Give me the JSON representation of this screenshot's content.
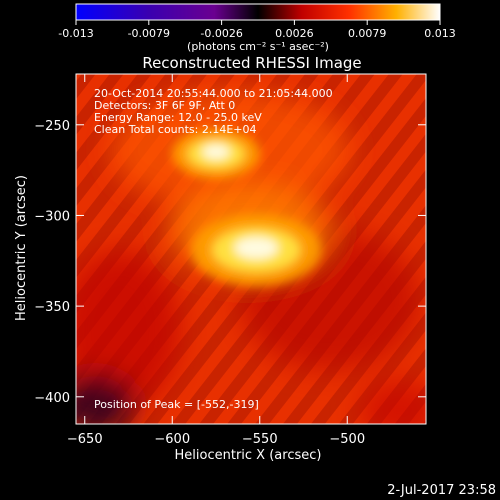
{
  "chart_data": {
    "type": "heatmap",
    "title": "Reconstructed RHESSI Image",
    "xlabel": "Heliocentric X (arcsec)",
    "ylabel": "Heliocentric Y (arcsec)",
    "xlim": [
      -655,
      -455
    ],
    "ylim": [
      -415,
      -222
    ],
    "xticks": [
      -650,
      -600,
      -550,
      -500
    ],
    "yticks": [
      -250,
      -300,
      -350,
      -400
    ],
    "colorbar": {
      "range": [
        -0.013,
        0.013
      ],
      "ticks": [
        "-0.013",
        "-0.0079",
        "-0.0026",
        "0.0026",
        "0.0079",
        "0.013"
      ],
      "unit_label": "(photons cm⁻² s⁻¹ asec⁻²)",
      "colormap": [
        "#0000ff",
        "#3a00b0",
        "#7a00a0",
        "#000000",
        "#ff0000",
        "#ffb000",
        "#ffffff"
      ]
    },
    "annotations": [
      "20-Oct-2014 20:55:44.000 to 21:05:44.000",
      "Detectors: 3F 6F 9F, Att 0",
      "Energy Range: 12.0 - 25.0 keV",
      "Clean     Total counts: 2.14E+04"
    ],
    "peak_label": "Position of Peak = [-552,-319]",
    "sources": [
      {
        "x": -552,
        "y": -319,
        "relative_intensity": 1.0
      },
      {
        "x": -575,
        "y": -266,
        "relative_intensity": 0.62
      }
    ],
    "grid": false
  },
  "footer": {
    "date": "2-Jul-2017 23:58"
  }
}
